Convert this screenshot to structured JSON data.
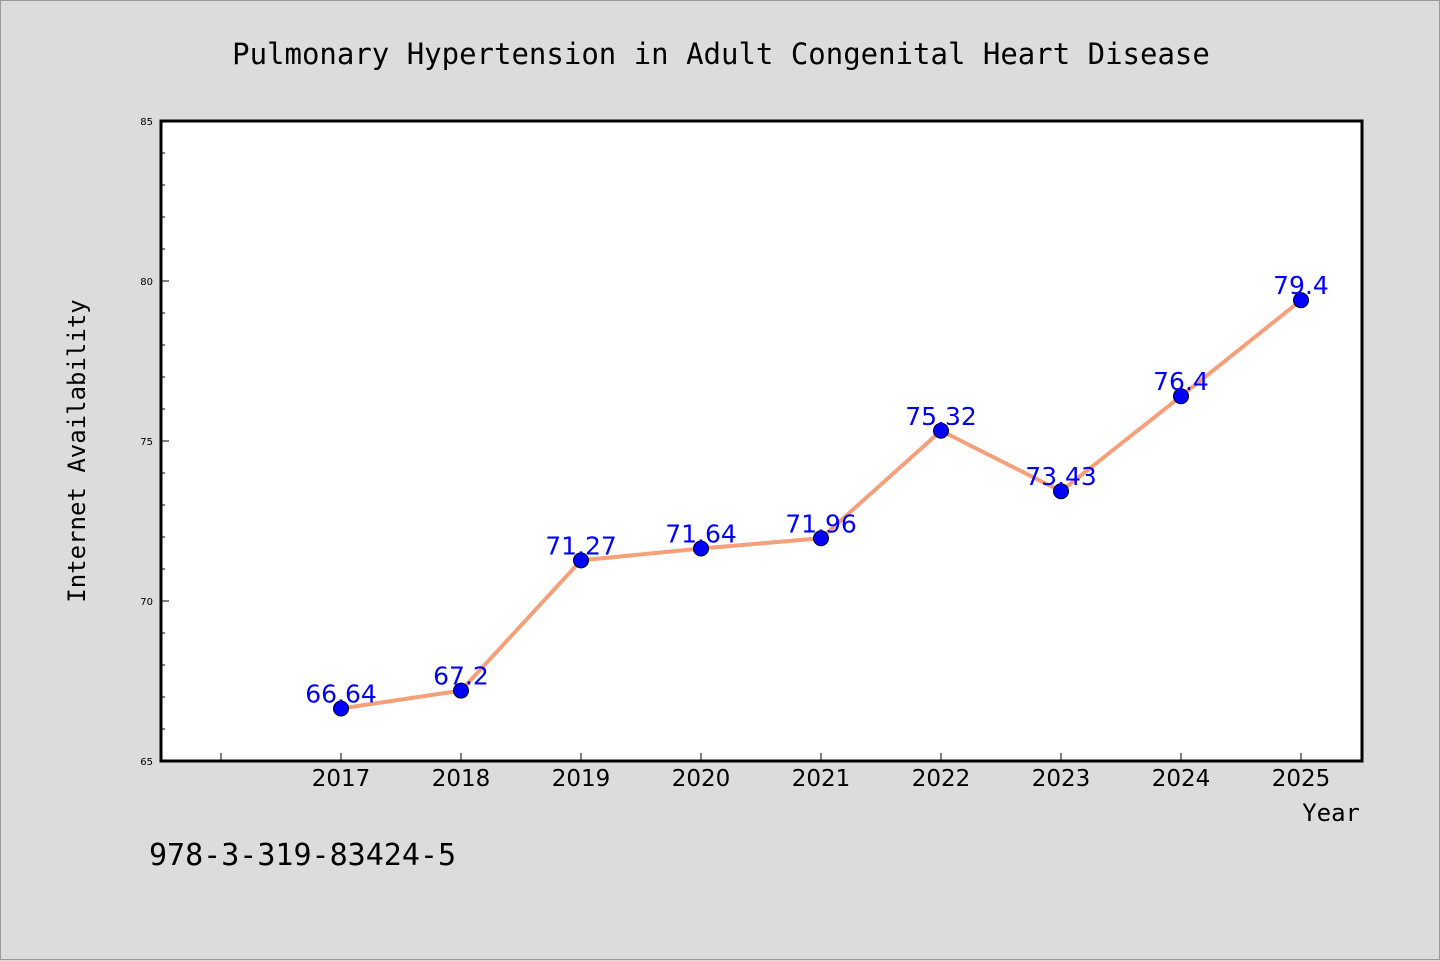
{
  "chart_data": {
    "type": "line",
    "title": "Pulmonary Hypertension in Adult Congenital Heart Disease",
    "xlabel": "Year",
    "ylabel": "Internet Availability",
    "categories": [
      "2017",
      "2018",
      "2019",
      "2020",
      "2021",
      "2022",
      "2023",
      "2024",
      "2025"
    ],
    "series": [
      {
        "values": [
          66.64,
          67.2,
          71.27,
          71.64,
          71.96,
          75.32,
          73.43,
          76.4,
          79.4
        ],
        "data_labels": [
          "66.64",
          "67.2",
          "71.27",
          "71.64",
          "71.96",
          "75.32",
          "73.43",
          "76.4",
          "79.4"
        ],
        "line_color": "#f5a07a",
        "marker_color": "#0000ff"
      }
    ],
    "ylim": [
      65,
      85
    ],
    "yticks": [
      "65",
      "70",
      "75",
      "80",
      "85"
    ],
    "grid": false,
    "legend": "none"
  },
  "footer": {
    "code": "978-3-319-83424-5"
  },
  "colors": {
    "background": "#dcdcdc",
    "plot_background": "#ffffff",
    "label_color": "#0000ff"
  }
}
